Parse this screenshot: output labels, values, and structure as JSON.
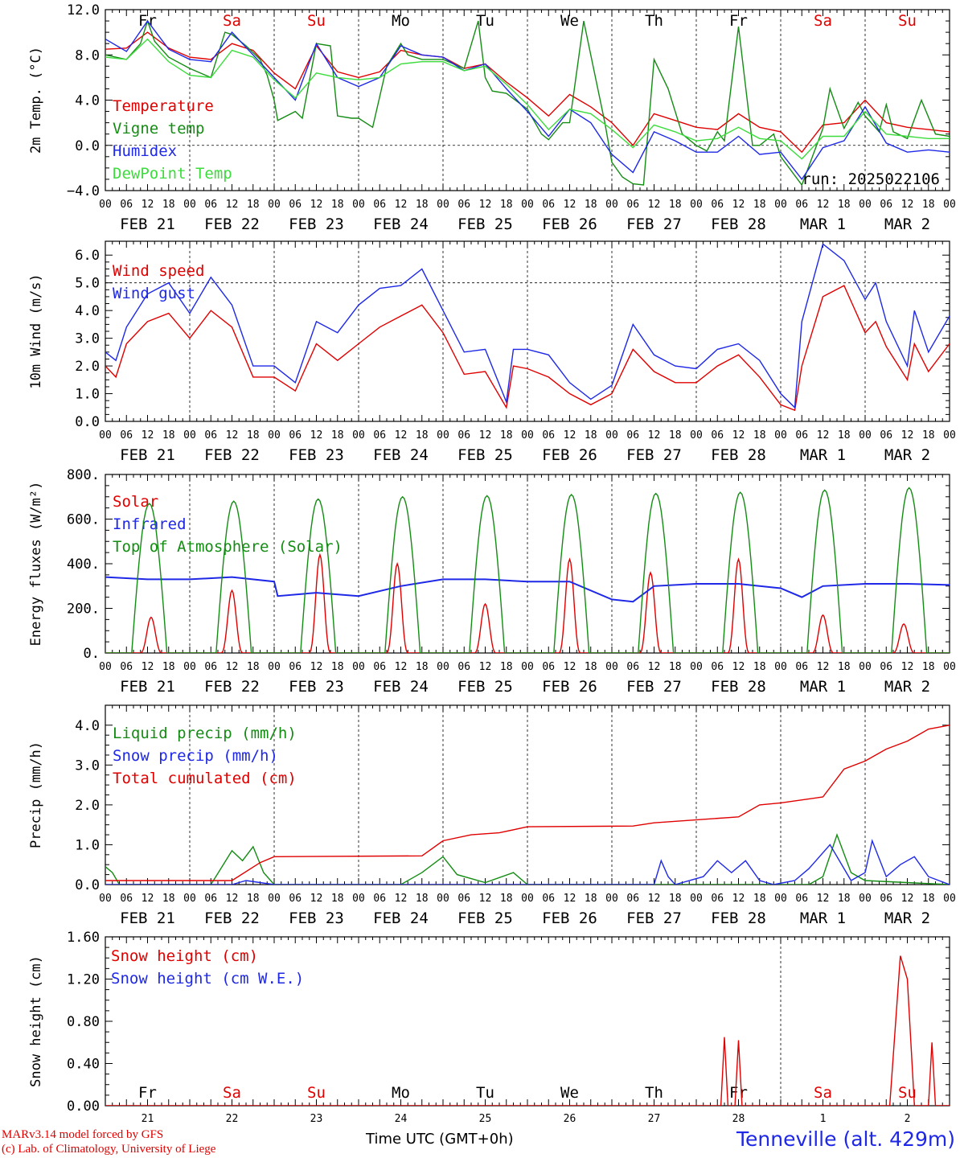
{
  "colors": {
    "red": "#e00000",
    "green": "#148c14",
    "blue": "#1e28e6",
    "lightgreen": "#3cdc3c",
    "axis": "#000000"
  },
  "day_labels": [
    {
      "name": "Fr",
      "color": "black"
    },
    {
      "name": "Sa",
      "color": "red"
    },
    {
      "name": "Su",
      "color": "red"
    },
    {
      "name": "Mo",
      "color": "black"
    },
    {
      "name": "Tu",
      "color": "black"
    },
    {
      "name": "We",
      "color": "black"
    },
    {
      "name": "Th",
      "color": "black"
    },
    {
      "name": "Fr",
      "color": "black"
    },
    {
      "name": "Sa",
      "color": "red"
    },
    {
      "name": "Su",
      "color": "red"
    }
  ],
  "date_labels": [
    "FEB 21",
    "FEB 22",
    "FEB 23",
    "FEB 24",
    "FEB 25",
    "FEB 26",
    "FEB 27",
    "FEB 28",
    "MAR  1",
    "MAR  2"
  ],
  "hour_ticks": [
    "00",
    "06",
    "12",
    "18"
  ],
  "last_tick": "00",
  "day_numbers": [
    "21",
    "22",
    "23",
    "24",
    "25",
    "26",
    "27",
    "28",
    "1",
    "2"
  ],
  "run_label": "run: 2025022106",
  "footer": {
    "line1": "MARv3.14 model forced by GFS",
    "line2": "(c) Lab. of Climatology, University of Liege",
    "time_label": "Time UTC (GMT+0h)",
    "station": "Tenneville (alt. 429m)"
  },
  "chart_data": [
    {
      "type": "line",
      "ylabel": "2m Temp. (°C)",
      "ylim": [
        -4,
        12
      ],
      "yticks": [
        -4,
        0,
        4,
        8,
        12
      ],
      "ytick_labels": [
        "−4.0",
        "0.0",
        "4.0",
        "8.0",
        "12.0"
      ],
      "reference_line": 0,
      "x_unit": "hours since 2025-02-21 00 UTC",
      "series": [
        {
          "name": "Temperature",
          "color": "red",
          "x": [
            0,
            6,
            12,
            18,
            24,
            30,
            36,
            42,
            48,
            54,
            60,
            66,
            72,
            78,
            84,
            90,
            96,
            102,
            108,
            114,
            120,
            126,
            132,
            138,
            144,
            150,
            156,
            162,
            168,
            174,
            180,
            186,
            192,
            198,
            204,
            210,
            216,
            222,
            228,
            234,
            240
          ],
          "y": [
            8.5,
            8.6,
            10.0,
            8.6,
            7.8,
            7.6,
            9.0,
            8.4,
            6.4,
            5.0,
            8.8,
            6.5,
            6.0,
            6.5,
            8.4,
            8.0,
            7.8,
            6.8,
            7.2,
            5.6,
            4.2,
            2.6,
            4.5,
            3.4,
            2.0,
            0.0,
            2.8,
            2.2,
            1.6,
            1.4,
            2.8,
            1.6,
            1.2,
            -0.6,
            1.8,
            2.0,
            4.0,
            2.0,
            1.6,
            1.4,
            1.2
          ]
        },
        {
          "name": "Vigne temp",
          "color": "green",
          "x": [
            0,
            6,
            10,
            12,
            14,
            18,
            24,
            30,
            34,
            36,
            40,
            44,
            46,
            48,
            49,
            54,
            56,
            60,
            64,
            66,
            70,
            72,
            76,
            80,
            84,
            86,
            90,
            96,
            102,
            106,
            108,
            110,
            114,
            120,
            124,
            126,
            130,
            132,
            136,
            142,
            144,
            147,
            150,
            153,
            156,
            160,
            164,
            168,
            171,
            174,
            176,
            180,
            184,
            186,
            190,
            192,
            198,
            204,
            206,
            210,
            214,
            216,
            220,
            222,
            224,
            228,
            232,
            236,
            240
          ],
          "y": [
            8.0,
            7.6,
            9.0,
            11.0,
            9.2,
            7.8,
            6.8,
            6.0,
            10.0,
            9.8,
            8.8,
            7.6,
            6.2,
            4.0,
            2.2,
            3.0,
            2.4,
            9.0,
            8.8,
            2.6,
            2.4,
            2.4,
            1.6,
            7.0,
            9.0,
            8.0,
            7.6,
            7.6,
            6.8,
            11.0,
            6.0,
            4.8,
            4.6,
            3.2,
            1.0,
            0.5,
            2.0,
            2.0,
            11.0,
            2.0,
            -1.5,
            -2.8,
            -3.4,
            -3.5,
            7.6,
            5.0,
            1.0,
            0.0,
            -0.5,
            1.2,
            0.4,
            10.5,
            0.0,
            0.0,
            1.0,
            -1.0,
            -3.5,
            1.5,
            5.0,
            1.5,
            3.8,
            2.6,
            1.2,
            3.6,
            1.2,
            0.6,
            4.0,
            1.0,
            0.8
          ]
        },
        {
          "name": "Humidex",
          "color": "blue",
          "x": [
            0,
            6,
            12,
            18,
            24,
            30,
            36,
            42,
            48,
            54,
            60,
            66,
            72,
            78,
            84,
            90,
            96,
            102,
            108,
            114,
            120,
            126,
            132,
            138,
            144,
            150,
            156,
            162,
            168,
            174,
            180,
            186,
            192,
            198,
            204,
            210,
            216,
            222,
            228,
            234,
            240
          ],
          "y": [
            9.4,
            8.3,
            11.0,
            8.5,
            7.6,
            7.4,
            10.0,
            8.0,
            6.0,
            4.0,
            9.0,
            6.0,
            5.2,
            6.0,
            8.8,
            8.0,
            7.8,
            6.6,
            7.2,
            5.0,
            3.0,
            0.8,
            3.2,
            2.0,
            -0.8,
            -2.4,
            1.2,
            0.4,
            -0.6,
            -0.6,
            0.8,
            -0.8,
            -0.6,
            -3.0,
            -0.2,
            0.4,
            3.4,
            0.2,
            -0.6,
            -0.4,
            -0.6
          ]
        },
        {
          "name": "DewPoint Temp",
          "color": "lightgreen",
          "x": [
            0,
            6,
            12,
            18,
            24,
            30,
            36,
            42,
            48,
            54,
            60,
            66,
            72,
            78,
            84,
            90,
            96,
            102,
            108,
            114,
            120,
            126,
            132,
            138,
            144,
            150,
            156,
            162,
            168,
            174,
            180,
            186,
            192,
            198,
            204,
            210,
            216,
            222,
            228,
            234,
            240
          ],
          "y": [
            7.8,
            7.6,
            9.4,
            7.4,
            6.2,
            6.0,
            8.4,
            7.8,
            5.8,
            4.2,
            6.4,
            6.0,
            5.8,
            6.0,
            7.2,
            7.4,
            7.4,
            6.6,
            7.0,
            5.4,
            3.6,
            1.4,
            3.2,
            2.8,
            1.4,
            -0.2,
            1.8,
            1.2,
            0.4,
            0.6,
            1.6,
            0.6,
            0.4,
            -1.2,
            0.8,
            0.8,
            3.0,
            1.0,
            0.8,
            0.6,
            0.6
          ]
        }
      ]
    },
    {
      "type": "line",
      "ylabel": "10m Wind (m/s)",
      "ylim": [
        0,
        6.5
      ],
      "yticks": [
        0,
        1,
        2,
        3,
        4,
        5,
        6
      ],
      "ytick_labels": [
        "0.0",
        "1.0",
        "2.0",
        "3.0",
        "4.0",
        "5.0",
        "6.0"
      ],
      "reference_line": 5,
      "x_unit": "hours since 2025-02-21 00 UTC",
      "series": [
        {
          "name": "Wind speed",
          "color": "red",
          "x": [
            0,
            3,
            6,
            12,
            18,
            24,
            30,
            36,
            42,
            48,
            54,
            60,
            66,
            72,
            78,
            84,
            90,
            96,
            102,
            108,
            114,
            116,
            120,
            126,
            132,
            138,
            144,
            150,
            156,
            162,
            168,
            174,
            180,
            186,
            192,
            196,
            198,
            204,
            210,
            216,
            219,
            222,
            228,
            230,
            234,
            240
          ],
          "y": [
            2.0,
            1.6,
            2.8,
            3.6,
            3.9,
            3.0,
            4.0,
            3.4,
            1.6,
            1.6,
            1.1,
            2.8,
            2.2,
            2.8,
            3.4,
            3.8,
            4.2,
            3.2,
            1.7,
            1.8,
            0.5,
            2.0,
            1.9,
            1.6,
            1.0,
            0.6,
            1.0,
            2.6,
            1.8,
            1.4,
            1.4,
            2.0,
            2.4,
            1.6,
            0.6,
            0.4,
            2.0,
            4.5,
            4.9,
            3.2,
            3.6,
            2.7,
            1.5,
            2.8,
            1.8,
            2.8
          ]
        },
        {
          "name": "Wind gust",
          "color": "blue",
          "x": [
            0,
            3,
            6,
            12,
            18,
            24,
            30,
            36,
            42,
            48,
            54,
            60,
            66,
            72,
            78,
            84,
            90,
            96,
            102,
            108,
            114,
            116,
            120,
            126,
            132,
            138,
            144,
            150,
            156,
            162,
            168,
            174,
            180,
            186,
            192,
            196,
            198,
            204,
            210,
            216,
            219,
            222,
            228,
            230,
            234,
            240
          ],
          "y": [
            2.5,
            2.2,
            3.4,
            4.6,
            5.0,
            3.9,
            5.2,
            4.2,
            2.0,
            2.0,
            1.4,
            3.6,
            3.2,
            4.2,
            4.8,
            4.9,
            5.5,
            4.0,
            2.5,
            2.6,
            0.7,
            2.6,
            2.6,
            2.4,
            1.4,
            0.8,
            1.3,
            3.5,
            2.4,
            2.0,
            1.9,
            2.6,
            2.8,
            2.2,
            1.0,
            0.5,
            3.6,
            6.4,
            5.8,
            4.4,
            5.0,
            3.6,
            2.0,
            4.0,
            2.5,
            3.8
          ]
        }
      ]
    },
    {
      "type": "line",
      "ylabel": "Energy fluxes (W/m²)",
      "ylim": [
        0,
        800
      ],
      "yticks": [
        0,
        200,
        400,
        600,
        800
      ],
      "ytick_labels": [
        "0.",
        "200.",
        "400.",
        "600.",
        "800."
      ],
      "x_unit": "hours since 2025-02-21 00 UTC",
      "series": [
        {
          "name": "Solar",
          "color": "red",
          "peaks": [
            160,
            280,
            440,
            400,
            220,
            420,
            360,
            420,
            170,
            130
          ],
          "peak_hours": [
            13,
            12,
            13,
            11,
            12,
            12,
            11,
            12,
            12,
            11
          ]
        },
        {
          "name": "Infrared",
          "color": "blue",
          "x": [
            0,
            12,
            24,
            36,
            48,
            49,
            60,
            72,
            84,
            96,
            108,
            120,
            132,
            144,
            150,
            156,
            168,
            180,
            192,
            198,
            204,
            216,
            228,
            240
          ],
          "y": [
            340,
            330,
            330,
            340,
            320,
            255,
            270,
            255,
            300,
            330,
            330,
            320,
            320,
            240,
            230,
            300,
            310,
            310,
            290,
            250,
            300,
            310,
            310,
            305
          ]
        },
        {
          "name": "Top of Atmosphere (Solar)",
          "color": "green",
          "peaks": [
            670,
            680,
            690,
            700,
            705,
            710,
            715,
            720,
            730,
            740
          ]
        }
      ]
    },
    {
      "type": "line",
      "ylabel": "Precip (mm/h)",
      "ylim": [
        0,
        4.5
      ],
      "yticks": [
        0,
        1,
        2,
        3,
        4
      ],
      "ytick_labels": [
        "0.0",
        "1.0",
        "2.0",
        "3.0",
        "4.0"
      ],
      "x_unit": "hours since 2025-02-21 00 UTC",
      "series": [
        {
          "name": "Liquid precip (mm/h)",
          "color": "green",
          "x": [
            0,
            2,
            4,
            24,
            30,
            36,
            39,
            42,
            45,
            48,
            84,
            90,
            96,
            100,
            108,
            116,
            120,
            200,
            204,
            208,
            212,
            216,
            240
          ],
          "y": [
            0.45,
            0.3,
            0,
            0,
            0,
            0.85,
            0.6,
            0.95,
            0.3,
            0,
            0,
            0.3,
            0.7,
            0.25,
            0.05,
            0.3,
            0,
            0,
            0.2,
            1.25,
            0.3,
            0.1,
            0
          ]
        },
        {
          "name": "Snow precip (mm/h)",
          "color": "blue",
          "x": [
            0,
            36,
            40,
            44,
            48,
            100,
            156,
            158,
            160,
            162,
            170,
            174,
            178,
            182,
            186,
            190,
            196,
            200,
            202,
            206,
            212,
            216,
            218,
            222,
            226,
            230,
            234,
            240
          ],
          "y": [
            0,
            0,
            0.1,
            0.05,
            0,
            0,
            0,
            0.6,
            0.2,
            0,
            0.2,
            0.6,
            0.3,
            0.6,
            0.1,
            0,
            0.1,
            0.4,
            0.6,
            1.0,
            0.1,
            0.3,
            1.1,
            0.2,
            0.5,
            0.7,
            0.2,
            0
          ]
        },
        {
          "name": "Total cumulated (cm)",
          "color": "red",
          "x": [
            0,
            36,
            44,
            48,
            90,
            96,
            104,
            112,
            120,
            150,
            156,
            180,
            186,
            192,
            204,
            210,
            216,
            222,
            228,
            234,
            240
          ],
          "y": [
            0.1,
            0.1,
            0.55,
            0.7,
            0.72,
            1.1,
            1.25,
            1.3,
            1.45,
            1.47,
            1.55,
            1.7,
            2.0,
            2.05,
            2.2,
            2.9,
            3.1,
            3.4,
            3.6,
            3.9,
            4.0
          ]
        }
      ]
    },
    {
      "type": "line",
      "ylabel": "Snow height (cm)",
      "ylim": [
        0,
        1.6
      ],
      "yticks": [
        0,
        0.4,
        0.8,
        1.2,
        1.6
      ],
      "ytick_labels": [
        "0.00",
        "0.40",
        "0.80",
        "1.20",
        "1.60"
      ],
      "x_unit": "hours since 2025-02-21 00 UTC",
      "series": [
        {
          "name": "Snow height (cm)",
          "color": "red",
          "x": [
            0,
            175,
            176,
            177,
            179,
            180,
            181,
            182,
            223,
            226,
            228,
            230,
            232,
            234,
            235,
            236,
            237,
            240
          ],
          "y": [
            0,
            0,
            0.65,
            0,
            0,
            0.62,
            0,
            0,
            0,
            1.42,
            1.2,
            0,
            0,
            0,
            0.6,
            0,
            0,
            0
          ]
        },
        {
          "name": "Snow height (cm W.E.)",
          "color": "blue",
          "x": [],
          "y": []
        }
      ]
    }
  ]
}
